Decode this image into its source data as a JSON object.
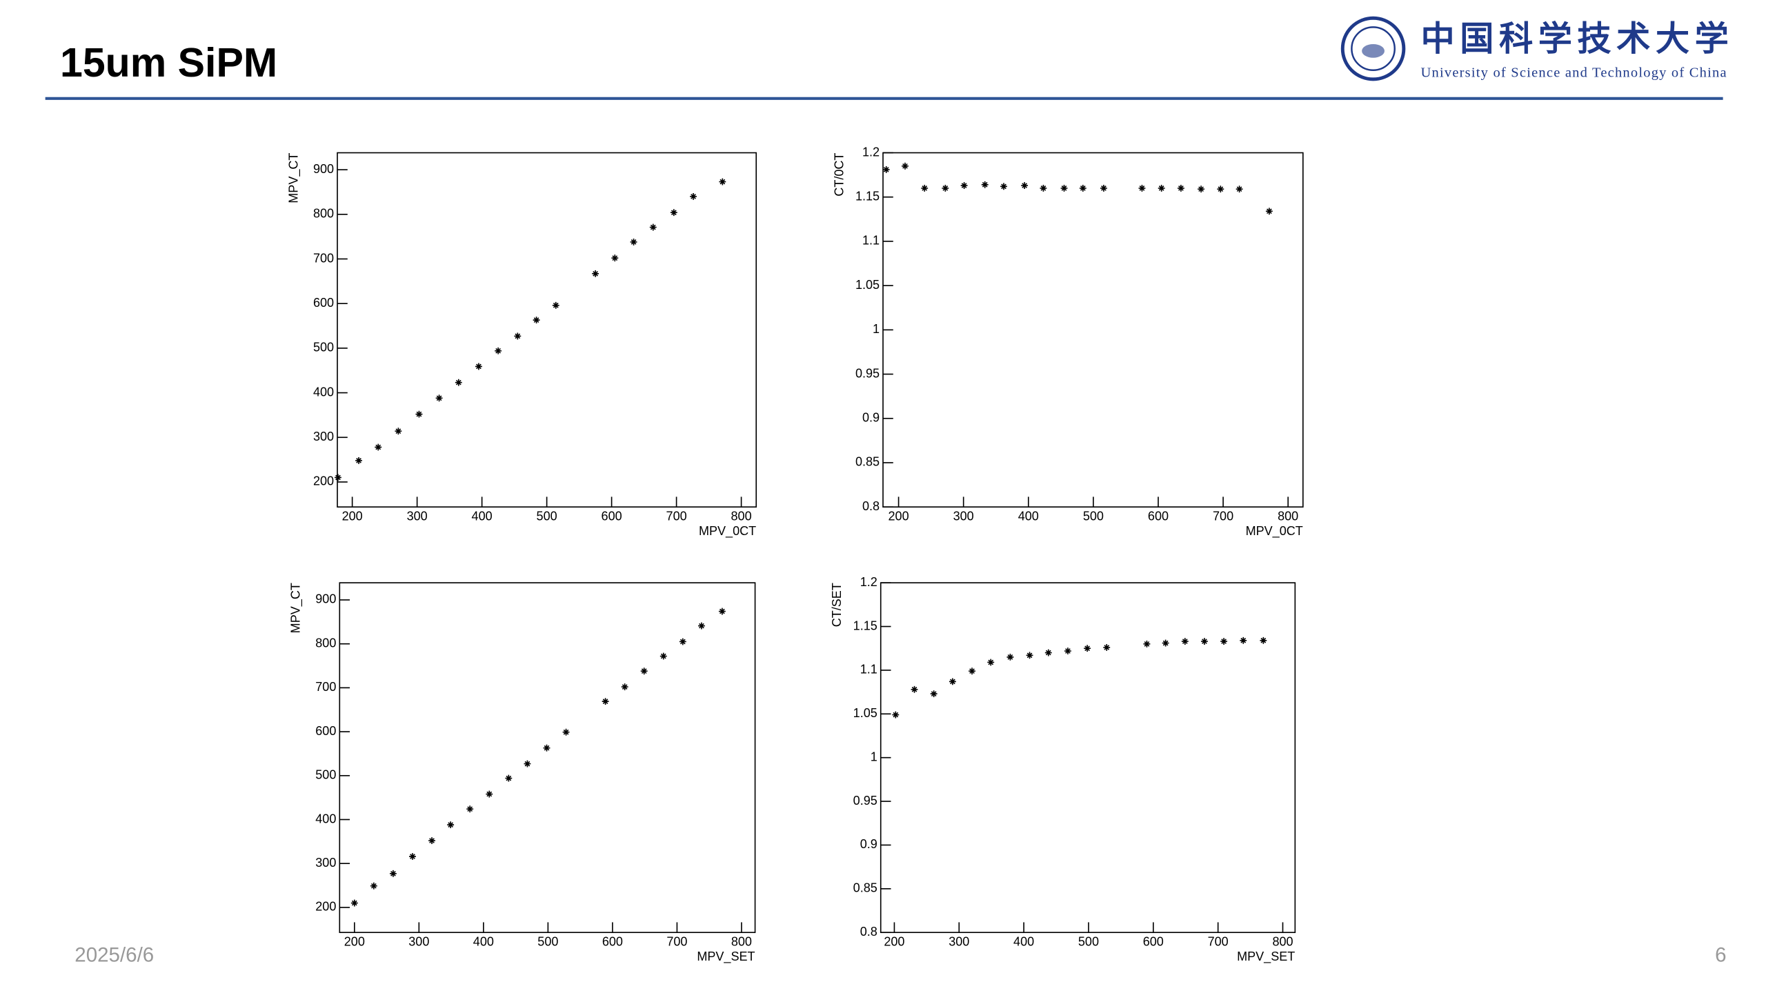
{
  "header": {
    "title": "15um SiPM"
  },
  "logo": {
    "name_zh": "中国科学技术大学",
    "name_en": "University of Science and Technology of China"
  },
  "footer": {
    "date": "2025/6/6",
    "page": "6"
  },
  "chart_data": [
    {
      "type": "scatter",
      "x_label": "MPV_0CT",
      "y_label": "MPV_CT",
      "color": "#000000",
      "x": [
        178,
        210,
        240,
        271,
        303,
        334,
        364,
        395,
        425,
        455,
        484,
        514,
        575,
        605,
        634,
        664,
        696,
        726,
        771
      ],
      "y": [
        210,
        248,
        278,
        314,
        352,
        388,
        423,
        459,
        494,
        527,
        563,
        596,
        667,
        702,
        738,
        771,
        804,
        840,
        873
      ],
      "xlim": [
        177,
        823
      ],
      "ylim": [
        144,
        938
      ],
      "xticks": [
        200,
        300,
        400,
        500,
        600,
        700,
        800
      ],
      "yticks": [
        200,
        300,
        400,
        500,
        600,
        700,
        800,
        900
      ]
    },
    {
      "type": "scatter",
      "x_label": "MPV_0CT",
      "y_label": "CT/0CT",
      "color": "#000000",
      "x": [
        181,
        210,
        240,
        272,
        301,
        333,
        362,
        394,
        423,
        455,
        484,
        516,
        575,
        605,
        635,
        666,
        696,
        725,
        771
      ],
      "y": [
        1.181,
        1.185,
        1.16,
        1.16,
        1.163,
        1.164,
        1.162,
        1.163,
        1.16,
        1.16,
        1.16,
        1.16,
        1.16,
        1.16,
        1.16,
        1.159,
        1.159,
        1.159,
        1.134
      ],
      "xlim": [
        176,
        823
      ],
      "ylim": [
        0.8,
        1.2
      ],
      "xticks": [
        200,
        300,
        400,
        500,
        600,
        700,
        800
      ],
      "yticks": [
        0.8,
        0.85,
        0.9,
        0.95,
        1,
        1.05,
        1.1,
        1.15,
        1.2
      ]
    },
    {
      "type": "scatter",
      "x_label": "MPV_SET",
      "y_label": "MPV_CT",
      "color": "#000000",
      "x": [
        200,
        230,
        260,
        290,
        320,
        349,
        379,
        409,
        439,
        468,
        498,
        528,
        589,
        619,
        649,
        679,
        709,
        738,
        770
      ],
      "y": [
        210,
        249,
        277,
        316,
        352,
        388,
        424,
        458,
        494,
        527,
        563,
        599,
        669,
        702,
        738,
        772,
        805,
        841,
        874
      ],
      "xlim": [
        177,
        821
      ],
      "ylim": [
        143,
        939
      ],
      "xticks": [
        200,
        300,
        400,
        500,
        600,
        700,
        800
      ],
      "yticks": [
        200,
        300,
        400,
        500,
        600,
        700,
        800,
        900
      ]
    },
    {
      "type": "scatter",
      "x_label": "MPV_SET",
      "y_label": "CT/SET",
      "color": "#000000",
      "x": [
        202,
        231,
        261,
        290,
        320,
        349,
        379,
        409,
        438,
        468,
        498,
        528,
        590,
        619,
        649,
        679,
        709,
        739,
        770
      ],
      "y": [
        1.049,
        1.078,
        1.073,
        1.087,
        1.099,
        1.109,
        1.115,
        1.117,
        1.12,
        1.122,
        1.125,
        1.126,
        1.13,
        1.131,
        1.133,
        1.133,
        1.133,
        1.134,
        1.134
      ],
      "xlim": [
        179,
        819
      ],
      "ylim": [
        0.8,
        1.2
      ],
      "xticks": [
        200,
        300,
        400,
        500,
        600,
        700,
        800
      ],
      "yticks": [
        0.8,
        0.85,
        0.9,
        0.95,
        1,
        1.05,
        1.1,
        1.15,
        1.2
      ]
    }
  ]
}
